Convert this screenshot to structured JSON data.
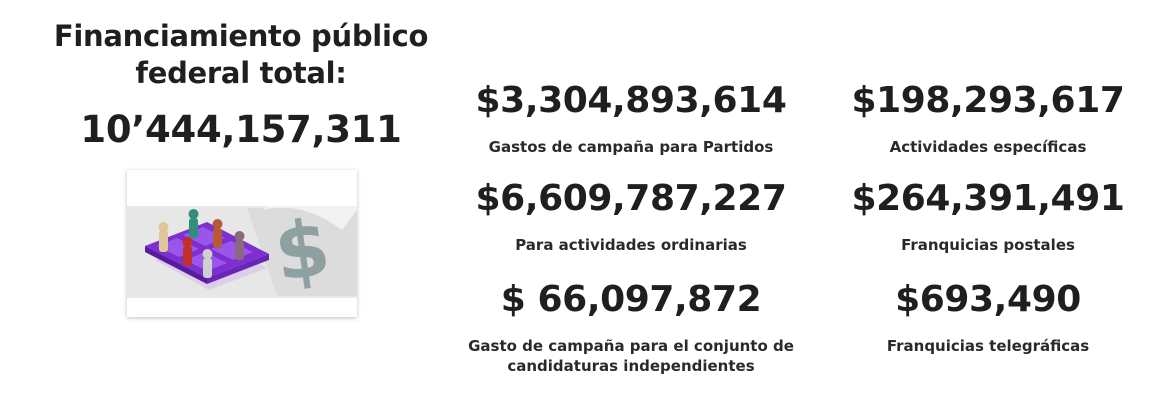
{
  "summary": {
    "title_line1": "Financiamiento público",
    "title_line2": "federal total:",
    "total": "10’444,157,311"
  },
  "illustration": {
    "icon": "campaign-finance-illustration",
    "colors": {
      "grid": "#8a3fe0",
      "dollar": "#8a9a9a"
    }
  },
  "items": [
    {
      "amount": "$3,304,893,614",
      "label_lines": [
        "Gastos de campaña para Partidos"
      ]
    },
    {
      "amount": "$198,293,617",
      "label_lines": [
        "Actividades específicas"
      ]
    },
    {
      "amount": "$6,609,787,227",
      "label_lines": [
        "Para actividades ordinarias"
      ]
    },
    {
      "amount": "$264,391,491",
      "label_lines": [
        "Franquicias postales"
      ]
    },
    {
      "amount": "$ 66,097,872",
      "label_lines": [
        "Gasto de campaña para el conjunto de",
        "candidaturas independientes"
      ]
    },
    {
      "amount": "$693,490",
      "label_lines": [
        "Franquicias telegráficas"
      ]
    }
  ]
}
